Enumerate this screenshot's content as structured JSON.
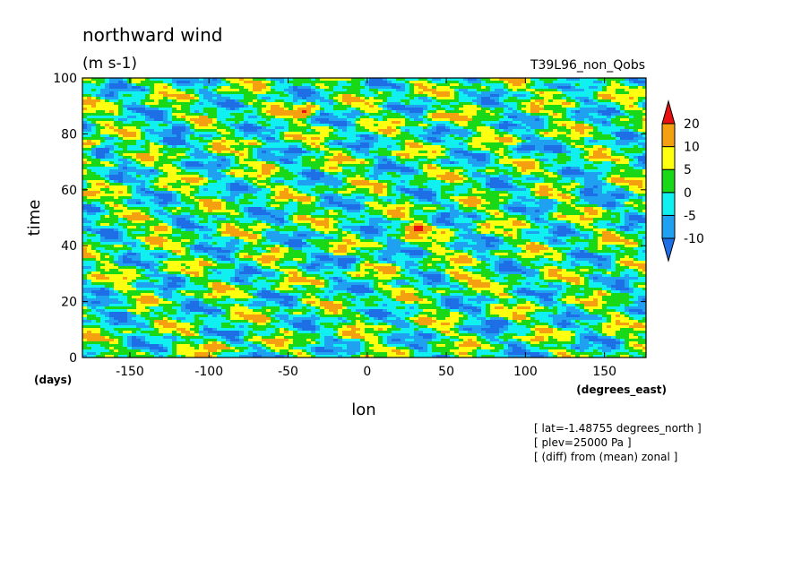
{
  "chart_data": {
    "type": "heatmap",
    "title": "northward wind",
    "units": "(m s-1)",
    "run_label": "T39L96_non_Qobs",
    "xlabel": "lon",
    "ylabel": "time",
    "x_unit": "(degrees_east)",
    "y_unit": "(days)",
    "xlim": [
      -180,
      176.25
    ],
    "ylim": [
      0,
      100
    ],
    "x_ticks": [
      -150,
      -100,
      -50,
      0,
      50,
      100,
      150
    ],
    "x_tick_labels": [
      "-150",
      "-100",
      "-50",
      "0",
      "50",
      "100",
      "150"
    ],
    "y_ticks": [
      0,
      20,
      40,
      60,
      80,
      100
    ],
    "y_tick_labels": [
      "0",
      "20",
      "40",
      "60",
      "80",
      "100"
    ],
    "levels": [
      -10,
      -5,
      0,
      5,
      10,
      20
    ],
    "level_labels": [
      "-10",
      "-5",
      "0",
      "5",
      "10",
      "20"
    ],
    "colors": [
      "#1e6fe6",
      "#1fa0f0",
      "#10f0f0",
      "#18d818",
      "#ffff10",
      "#f4a010",
      "#e81010"
    ],
    "colorbar": "right",
    "value_range_hint": [
      -15,
      25
    ],
    "annotations": [
      "[ lat=-1.48755 degrees_north ]",
      "[ plev=25000 Pa ]",
      "[ (diff) from (mean) zonal ]"
    ],
    "hotspots": [
      {
        "lon": -40,
        "time": 88,
        "value": 22
      },
      {
        "lon": -177,
        "time": 76,
        "value": 21
      },
      {
        "lon": 30,
        "time": 46,
        "value": 20
      },
      {
        "lon": -130,
        "time": 46,
        "value": 14
      },
      {
        "lon": 60,
        "time": 29,
        "value": 16
      },
      {
        "lon": 45,
        "time": 86,
        "value": 15
      },
      {
        "lon": -95,
        "time": 4,
        "value": 13
      },
      {
        "lon": 120,
        "time": 95,
        "value": 12
      },
      {
        "lon": -120,
        "time": 82,
        "value": -14
      },
      {
        "lon": 140,
        "time": 60,
        "value": -13
      },
      {
        "lon": -10,
        "time": 35,
        "value": -13
      },
      {
        "lon": 80,
        "time": 12,
        "value": -12
      },
      {
        "lon": -160,
        "time": 20,
        "value": -12
      },
      {
        "lon": 100,
        "time": 75,
        "value": -12
      }
    ]
  }
}
